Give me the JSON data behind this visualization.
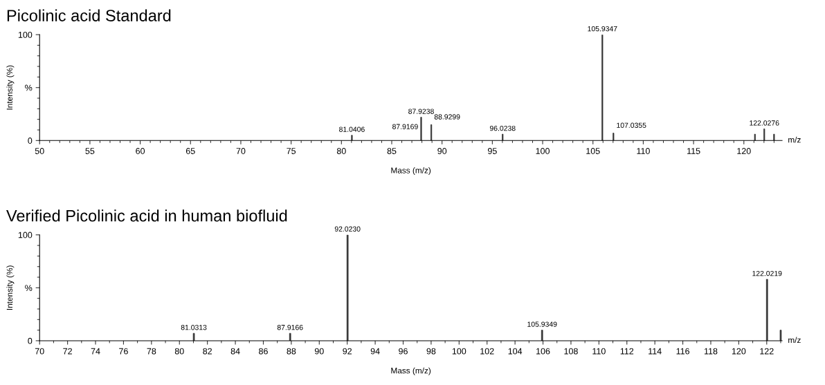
{
  "chart_data": [
    {
      "type": "bar",
      "title": "Picolinic acid Standard",
      "xlabel": "Mass (m/z)",
      "ylabel": "Intensity (%)",
      "annotations": [
        "m/z",
        {
          "text": "81.0406",
          "x": 81.0406,
          "y": 5
        },
        {
          "text": "87.9169",
          "x": 87.9169,
          "y": 20.9
        },
        {
          "text": "87.9238",
          "x": 87.9238,
          "y": 22
        },
        {
          "text": "88.9299",
          "x": 88.9299,
          "y": 15
        },
        {
          "text": "96.0238",
          "x": 96.0238,
          "y": 6
        },
        {
          "text": "105.9347",
          "x": 105.9347,
          "y": 100
        },
        {
          "text": "107.0355",
          "x": 107.0355,
          "y": 7
        },
        {
          "text": "122.0276",
          "x": 122.0276,
          "y": 11
        }
      ],
      "x": [
        81.0406,
        87.9169,
        87.9238,
        88.9299,
        96.0238,
        105.9347,
        107.0355,
        121.1,
        122.0276,
        123.0
      ],
      "values": [
        5,
        null,
        22,
        15,
        6,
        100,
        7,
        6,
        11,
        6
      ],
      "color": "#333333",
      "xlim": [
        50,
        123.8
      ],
      "xticks": [
        50,
        55,
        60,
        65,
        70,
        75,
        80,
        85,
        90,
        95,
        100,
        105,
        110,
        115,
        120
      ],
      "ylim": [
        0,
        100
      ],
      "yticks": [
        0,
        {
          "value": 50,
          "label": "%"
        },
        100
      ],
      "grid": false,
      "legend": false
    },
    {
      "type": "bar",
      "title": "Verified Picolinic acid in human biofluid",
      "xlabel": "Mass (m/z)",
      "ylabel": "Intensity (%)",
      "annotations": [
        "m/z",
        {
          "text": "81.0313",
          "x": 81.0313,
          "y": 7
        },
        {
          "text": "87.9166",
          "x": 87.9166,
          "y": 7
        },
        {
          "text": "92.0230",
          "x": 92.023,
          "y": 100
        },
        {
          "text": "105.9349",
          "x": 105.9349,
          "y": 10
        },
        {
          "text": "122.0219",
          "x": 122.0219,
          "y": 58
        }
      ],
      "x": [
        81.0313,
        87.9166,
        92.023,
        105.9349,
        122.0219,
        123.0
      ],
      "values": [
        7,
        7,
        100,
        10,
        58,
        10
      ],
      "color": "#333333",
      "xlim": [
        70,
        123.1
      ],
      "xticks": [
        70,
        72,
        74,
        76,
        78,
        80,
        82,
        84,
        86,
        88,
        90,
        92,
        94,
        96,
        98,
        100,
        102,
        104,
        106,
        108,
        110,
        112,
        114,
        116,
        118,
        120,
        122
      ],
      "ylim": [
        0,
        100
      ],
      "yticks": [
        0,
        {
          "value": 50,
          "label": "%"
        },
        100
      ],
      "grid": false,
      "legend": false
    }
  ]
}
